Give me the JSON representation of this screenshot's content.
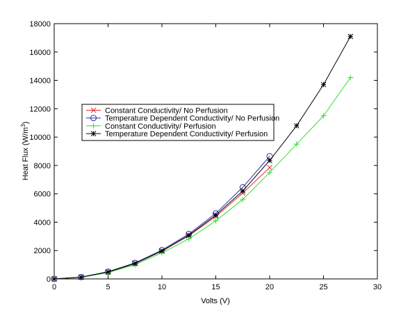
{
  "chart_data": {
    "type": "line",
    "title": "",
    "xlabel": "Volts (V)",
    "ylabel_main": "Heat Flux (W/m",
    "ylabel_sup": "3",
    "ylabel_close": ")",
    "xlim": [
      0,
      30
    ],
    "ylim": [
      0,
      18000
    ],
    "xticks": [
      0,
      5,
      10,
      15,
      20,
      25,
      30
    ],
    "yticks": [
      0,
      2000,
      4000,
      6000,
      8000,
      10000,
      12000,
      14000,
      16000,
      18000
    ],
    "grid": false,
    "legend_position": "center-left",
    "series": [
      {
        "name": "Constant Conductivity/ No Perfusion",
        "color": "#e03030",
        "marker": "x",
        "x": [
          0,
          2.5,
          5,
          7.5,
          10,
          12.5,
          15,
          17.5,
          20
        ],
        "y": [
          0,
          120,
          480,
          1080,
          1950,
          3050,
          4400,
          6050,
          7850
        ]
      },
      {
        "name": "Temperature Dependent Conductivity/ No Perfusion",
        "color": "#2a2aa8",
        "marker": "circle",
        "x": [
          0,
          2.5,
          5,
          7.5,
          10,
          12.5,
          15,
          17.5,
          20
        ],
        "y": [
          0,
          130,
          510,
          1130,
          2030,
          3170,
          4620,
          6460,
          8650
        ]
      },
      {
        "name": "Constant Conductivity/ Perfusion",
        "color": "#33dd33",
        "marker": "plus",
        "x": [
          0,
          2.5,
          5,
          7.5,
          10,
          12.5,
          15,
          17.5,
          20,
          22.5,
          25,
          27.5
        ],
        "y": [
          0,
          110,
          440,
          1000,
          1840,
          2820,
          4100,
          5600,
          7500,
          9500,
          11500,
          14200
        ]
      },
      {
        "name": "Temperature Dependent Conductivity/ Perfusion",
        "color": "#000000",
        "marker": "star",
        "x": [
          0,
          2.5,
          5,
          7.5,
          10,
          12.5,
          15,
          17.5,
          20,
          22.5,
          25,
          27.5
        ],
        "y": [
          0,
          125,
          490,
          1090,
          1970,
          3080,
          4500,
          6200,
          8350,
          10800,
          13700,
          17100
        ]
      }
    ]
  }
}
